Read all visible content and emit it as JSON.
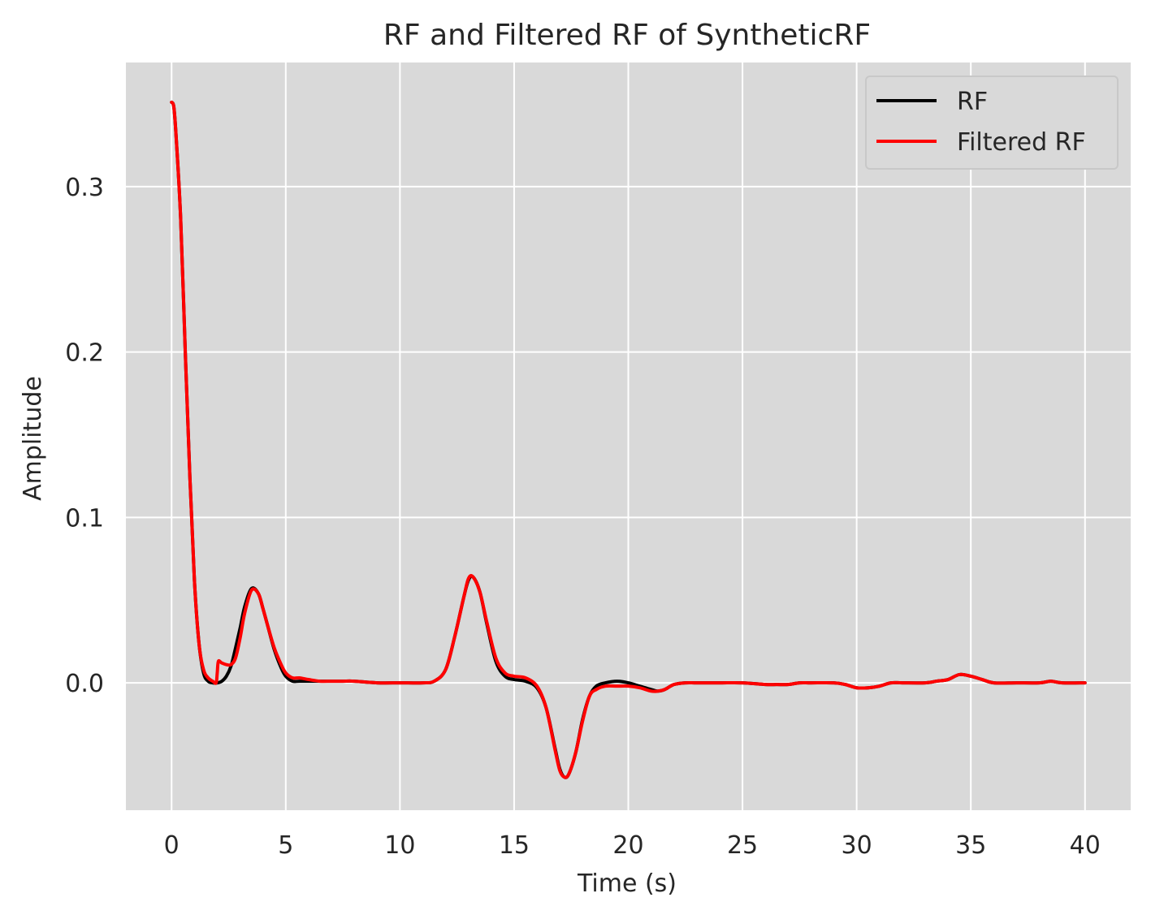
{
  "chart_data": {
    "type": "line",
    "title": "RF and Filtered RF of SyntheticRF",
    "xlabel": "Time (s)",
    "ylabel": "Amplitude",
    "xlim": [
      -2,
      42
    ],
    "ylim": [
      -0.077,
      0.375
    ],
    "xticks": [
      0,
      5,
      10,
      15,
      20,
      25,
      30,
      35,
      40
    ],
    "xtick_labels": [
      "0",
      "5",
      "10",
      "15",
      "20",
      "25",
      "30",
      "35",
      "40"
    ],
    "yticks": [
      0.0,
      0.1,
      0.2,
      0.3
    ],
    "ytick_labels": [
      "0.0",
      "0.1",
      "0.2",
      "0.3"
    ],
    "grid": true,
    "legend_position": "top-right",
    "background_color": "#d9d9d9",
    "series": [
      {
        "name": "RF",
        "color": "#000000",
        "x": [
          0,
          0.1,
          0.2,
          0.4,
          0.6,
          0.8,
          1.0,
          1.2,
          1.4,
          1.6,
          1.8,
          2.0,
          2.2,
          2.4,
          2.6,
          2.8,
          3.0,
          3.2,
          3.5,
          3.8,
          4.0,
          4.2,
          4.5,
          4.8,
          5.0,
          5.3,
          5.6,
          6.0,
          6.5,
          7.0,
          7.5,
          8.0,
          9.0,
          10.0,
          11.0,
          11.5,
          12.0,
          12.4,
          12.8,
          13.0,
          13.2,
          13.5,
          13.8,
          14.2,
          14.6,
          15.0,
          15.5,
          16.0,
          16.4,
          16.8,
          17.0,
          17.2,
          17.4,
          17.7,
          18.0,
          18.3,
          18.6,
          19.0,
          19.5,
          20.0,
          20.5,
          21.0,
          21.3,
          21.6,
          22.0,
          22.5,
          23.0,
          24.0,
          25.0,
          26.0,
          26.5,
          27.0,
          27.5,
          28.0,
          29.0,
          29.5,
          30.0,
          30.5,
          31.0,
          31.5,
          32.0,
          33.0,
          33.5,
          34.0,
          34.5,
          35.0,
          35.5,
          36.0,
          37.0,
          38.0,
          38.5,
          39.0,
          40.0
        ],
        "values": [
          0.351,
          0.348,
          0.33,
          0.28,
          0.2,
          0.125,
          0.062,
          0.024,
          0.006,
          0.001,
          0.0,
          0.0,
          0.001,
          0.004,
          0.01,
          0.021,
          0.033,
          0.046,
          0.057,
          0.054,
          0.045,
          0.035,
          0.02,
          0.009,
          0.004,
          0.001,
          0.001,
          0.001,
          0.001,
          0.001,
          0.001,
          0.001,
          0.0,
          0.0,
          0.0,
          0.001,
          0.008,
          0.028,
          0.052,
          0.062,
          0.064,
          0.055,
          0.036,
          0.013,
          0.004,
          0.002,
          0.001,
          -0.003,
          -0.015,
          -0.04,
          -0.052,
          -0.057,
          -0.055,
          -0.042,
          -0.022,
          -0.008,
          -0.002,
          0.0,
          0.001,
          0.0,
          -0.002,
          -0.004,
          -0.005,
          -0.004,
          -0.001,
          0.0,
          0.0,
          0.0,
          0.0,
          -0.001,
          -0.001,
          -0.001,
          0.0,
          0.0,
          0.0,
          -0.001,
          -0.003,
          -0.003,
          -0.002,
          0.0,
          0.0,
          0.0,
          0.001,
          0.002,
          0.005,
          0.004,
          0.002,
          0.0,
          0.0,
          0.0,
          0.001,
          0.0,
          0.0
        ]
      },
      {
        "name": "Filtered RF",
        "color": "#ff0000",
        "x": [
          0,
          0.1,
          0.2,
          0.4,
          0.6,
          0.8,
          1.0,
          1.2,
          1.4,
          1.6,
          1.8,
          1.95,
          2.0,
          2.05,
          2.2,
          2.4,
          2.6,
          2.8,
          3.0,
          3.2,
          3.5,
          3.8,
          4.0,
          4.2,
          4.5,
          4.8,
          5.0,
          5.3,
          5.6,
          6.0,
          6.5,
          7.0,
          7.5,
          8.0,
          9.0,
          10.0,
          11.0,
          11.5,
          12.0,
          12.4,
          12.8,
          13.0,
          13.2,
          13.5,
          13.8,
          14.2,
          14.6,
          15.0,
          15.5,
          16.0,
          16.4,
          16.8,
          17.0,
          17.2,
          17.4,
          17.7,
          18.0,
          18.3,
          18.6,
          19.0,
          19.5,
          20.0,
          20.5,
          21.0,
          21.3,
          21.6,
          22.0,
          22.5,
          23.0,
          24.0,
          25.0,
          26.0,
          26.5,
          27.0,
          27.5,
          28.0,
          29.0,
          29.5,
          30.0,
          30.5,
          31.0,
          31.5,
          32.0,
          33.0,
          33.5,
          34.0,
          34.5,
          35.0,
          35.5,
          36.0,
          37.0,
          38.0,
          38.5,
          39.0,
          40.0
        ],
        "values": [
          0.351,
          0.348,
          0.33,
          0.28,
          0.2,
          0.125,
          0.062,
          0.024,
          0.008,
          0.003,
          0.001,
          0.0,
          0.006,
          0.013,
          0.012,
          0.011,
          0.011,
          0.015,
          0.027,
          0.042,
          0.056,
          0.054,
          0.045,
          0.035,
          0.021,
          0.011,
          0.006,
          0.003,
          0.003,
          0.002,
          0.001,
          0.001,
          0.001,
          0.001,
          0.0,
          0.0,
          0.0,
          0.001,
          0.008,
          0.028,
          0.052,
          0.063,
          0.064,
          0.055,
          0.037,
          0.015,
          0.006,
          0.004,
          0.003,
          -0.002,
          -0.015,
          -0.041,
          -0.053,
          -0.057,
          -0.055,
          -0.042,
          -0.023,
          -0.008,
          -0.004,
          -0.002,
          -0.002,
          -0.002,
          -0.003,
          -0.005,
          -0.005,
          -0.004,
          -0.001,
          0.0,
          0.0,
          0.0,
          0.0,
          -0.001,
          -0.001,
          -0.001,
          0.0,
          0.0,
          0.0,
          -0.001,
          -0.003,
          -0.003,
          -0.002,
          0.0,
          0.0,
          0.0,
          0.001,
          0.002,
          0.005,
          0.004,
          0.002,
          0.0,
          0.0,
          0.0,
          0.001,
          0.0,
          0.0
        ]
      }
    ]
  }
}
